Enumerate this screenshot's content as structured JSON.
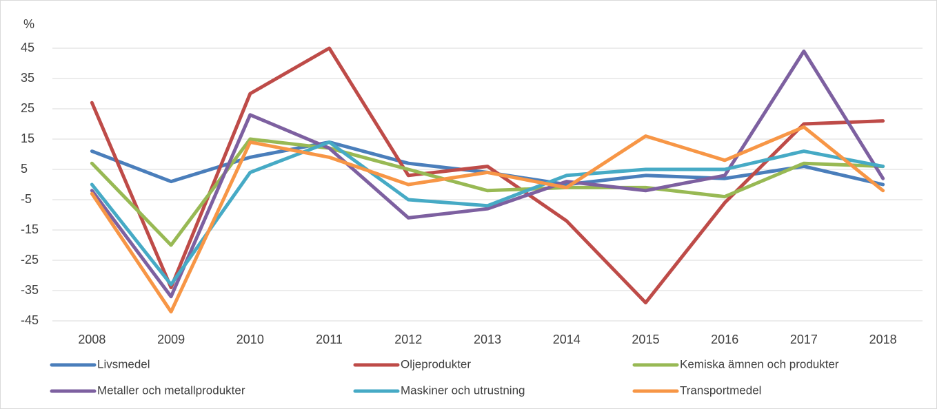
{
  "chart_data": {
    "type": "line",
    "y_unit": "%",
    "categories": [
      "2008",
      "2009",
      "2010",
      "2011",
      "2012",
      "2013",
      "2014",
      "2015",
      "2016",
      "2017",
      "2018"
    ],
    "series": [
      {
        "name": "Livsmedel",
        "color": "#4a7ebb",
        "values": [
          11,
          1,
          9,
          14,
          7,
          4,
          0,
          3,
          2,
          6,
          0
        ]
      },
      {
        "name": "Oljeprodukter",
        "color": "#be4b48",
        "values": [
          27,
          -34,
          30,
          45,
          3,
          6,
          -12,
          -39,
          -6,
          20,
          21
        ]
      },
      {
        "name": "Kemiska ämnen och produkter",
        "color": "#98b954",
        "values": [
          7,
          -20,
          15,
          12,
          5,
          -2,
          -1,
          -1,
          -4,
          7,
          6
        ]
      },
      {
        "name": "Metaller och metallprodukter",
        "color": "#7d60a0",
        "values": [
          -2,
          -37,
          23,
          12,
          -11,
          -8,
          1,
          -2,
          3,
          44,
          2
        ]
      },
      {
        "name": "Maskiner och utrustning",
        "color": "#46aac5",
        "values": [
          0,
          -33,
          4,
          14,
          -5,
          -7,
          3,
          5,
          5,
          11,
          6
        ]
      },
      {
        "name": "Transportmedel",
        "color": "#f79646",
        "values": [
          -3,
          -42,
          14,
          9,
          0,
          4,
          -1,
          16,
          8,
          19,
          -2
        ]
      }
    ],
    "ylim": [
      -45,
      45
    ],
    "yticks": [
      -45,
      -35,
      -25,
      -15,
      -5,
      5,
      15,
      25,
      35,
      45
    ],
    "grid": true
  }
}
